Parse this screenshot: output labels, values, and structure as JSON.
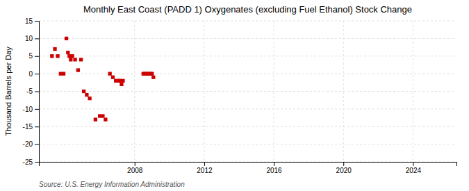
{
  "chart_data": {
    "type": "scatter",
    "title": "Monthly East Coast (PADD 1) Oxygenates (excluding Fuel Ethanol) Stock Change",
    "ylabel": "Thousand Barrels per Day",
    "source": "Source: U.S. Energy Information Administration",
    "x": [
      2003.25,
      2003.42,
      2003.58,
      2003.75,
      2003.92,
      2004.08,
      2004.17,
      2004.25,
      2004.33,
      2004.42,
      2004.58,
      2004.75,
      2004.92,
      2005.08,
      2005.25,
      2005.42,
      2005.75,
      2006.0,
      2006.17,
      2006.33,
      2006.58,
      2006.75,
      2006.92,
      2007.08,
      2007.17,
      2007.25,
      2007.33,
      2008.5,
      2008.58,
      2008.67,
      2008.75,
      2008.83,
      2008.92,
      2009.0,
      2009.08
    ],
    "values": [
      5,
      7,
      5,
      0,
      0,
      10,
      6,
      5,
      4,
      5,
      4,
      1,
      4,
      -5,
      -6,
      -7,
      -13,
      -12,
      -12,
      -13,
      0,
      -1,
      -2,
      -2,
      -2,
      -3,
      -2,
      0,
      0,
      0,
      0,
      0,
      0,
      0,
      -1
    ],
    "color": "#cc0000",
    "marker": "square",
    "xlim": [
      2002.5,
      2026.5
    ],
    "xticks": [
      2008,
      2012,
      2016,
      2020,
      2024
    ],
    "ylim": [
      -25,
      15
    ],
    "yticks": [
      -25,
      -20,
      -15,
      -10,
      -5,
      0,
      5,
      10,
      15
    ],
    "grid": true
  }
}
